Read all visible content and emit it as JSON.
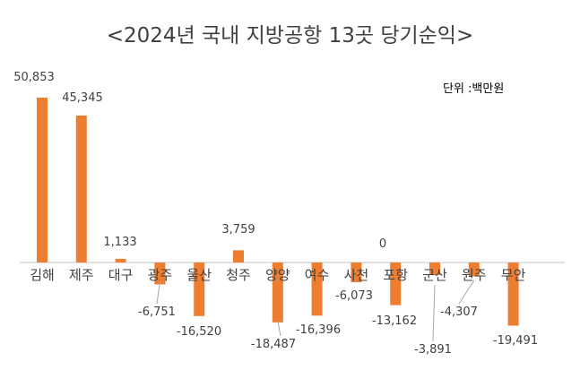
{
  "chart_data": {
    "type": "bar",
    "title": "<2024년 국내 지방공항 13곳 당기순익>",
    "unit": "단위 :백만원",
    "categories": [
      "김해",
      "제주",
      "대구",
      "광주",
      "울산",
      "청주",
      "양양",
      "여수",
      "사천",
      "포항",
      "군산",
      "원주",
      "무안"
    ],
    "values": [
      50853,
      45345,
      1133,
      -6751,
      -16520,
      3759,
      -18487,
      -16396,
      -6073,
      -13162,
      -3891,
      -4307,
      -19491
    ],
    "data_labels": [
      "50,853",
      "45,345",
      "1,133",
      "-6,751",
      "-16,520",
      "3,759",
      "-18,487",
      "-16,396",
      "-6,073",
      "-13,162",
      "-3,891",
      "-4,307",
      "-19,491"
    ],
    "annotations": [
      "0"
    ],
    "bar_color": "#ED7D31",
    "axis_color": "#D9D9D9",
    "grid": false,
    "legend": "none"
  }
}
